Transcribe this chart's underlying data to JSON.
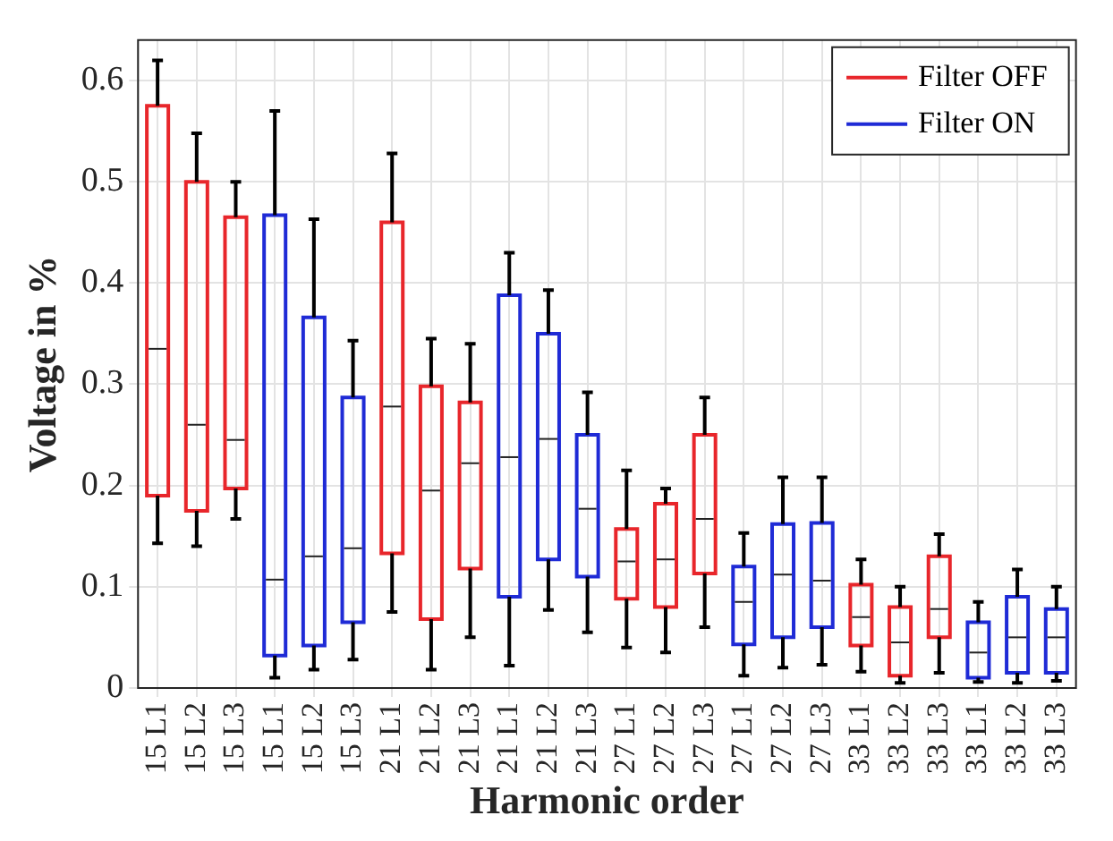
{
  "chart_data": {
    "type": "box",
    "xlabel": "Harmonic order",
    "ylabel": "Voltage in %",
    "categories": [
      "15 L1",
      "15 L2",
      "15 L3",
      "15 L1",
      "15 L2",
      "15 L3",
      "21 L1",
      "21 L2",
      "21 L3",
      "21 L1",
      "21 L2",
      "21 L3",
      "27 L1",
      "27 L2",
      "27 L3",
      "27 L1",
      "27 L2",
      "27 L3",
      "33 L1",
      "33 L2",
      "33 L3",
      "33 L1",
      "33 L2",
      "33 L3"
    ],
    "ylim": [
      0,
      0.64
    ],
    "yticks": [
      0,
      0.1,
      0.2,
      0.3,
      0.4,
      0.5,
      0.6
    ],
    "grid": true,
    "legend": "top right",
    "series": [
      {
        "name": "Filter OFF",
        "color": "#e8262b",
        "boxes": [
          {
            "low": 0.143,
            "q1": 0.19,
            "median": 0.335,
            "q3": 0.575,
            "high": 0.62
          },
          {
            "low": 0.14,
            "q1": 0.175,
            "median": 0.26,
            "q3": 0.5,
            "high": 0.548
          },
          {
            "low": 0.167,
            "q1": 0.197,
            "median": 0.245,
            "q3": 0.465,
            "high": 0.5
          },
          null,
          null,
          null,
          {
            "low": 0.075,
            "q1": 0.133,
            "median": 0.278,
            "q3": 0.46,
            "high": 0.528
          },
          {
            "low": 0.018,
            "q1": 0.068,
            "median": 0.195,
            "q3": 0.298,
            "high": 0.345
          },
          {
            "low": 0.05,
            "q1": 0.118,
            "median": 0.222,
            "q3": 0.282,
            "high": 0.34
          },
          null,
          null,
          null,
          {
            "low": 0.04,
            "q1": 0.088,
            "median": 0.125,
            "q3": 0.157,
            "high": 0.215
          },
          {
            "low": 0.035,
            "q1": 0.08,
            "median": 0.127,
            "q3": 0.182,
            "high": 0.197
          },
          {
            "low": 0.06,
            "q1": 0.113,
            "median": 0.167,
            "q3": 0.25,
            "high": 0.287
          },
          null,
          null,
          null,
          {
            "low": 0.016,
            "q1": 0.042,
            "median": 0.07,
            "q3": 0.102,
            "high": 0.127
          },
          {
            "low": 0.005,
            "q1": 0.012,
            "median": 0.045,
            "q3": 0.08,
            "high": 0.1
          },
          {
            "low": 0.015,
            "q1": 0.05,
            "median": 0.078,
            "q3": 0.13,
            "high": 0.152
          },
          null,
          null,
          null
        ]
      },
      {
        "name": "Filter ON",
        "color": "#1f2bd6",
        "boxes": [
          null,
          null,
          null,
          {
            "low": 0.01,
            "q1": 0.032,
            "median": 0.107,
            "q3": 0.467,
            "high": 0.57
          },
          {
            "low": 0.018,
            "q1": 0.042,
            "median": 0.13,
            "q3": 0.366,
            "high": 0.463
          },
          {
            "low": 0.028,
            "q1": 0.065,
            "median": 0.138,
            "q3": 0.287,
            "high": 0.343
          },
          null,
          null,
          null,
          {
            "low": 0.022,
            "q1": 0.09,
            "median": 0.228,
            "q3": 0.388,
            "high": 0.43
          },
          {
            "low": 0.077,
            "q1": 0.127,
            "median": 0.246,
            "q3": 0.35,
            "high": 0.393
          },
          {
            "low": 0.055,
            "q1": 0.11,
            "median": 0.177,
            "q3": 0.25,
            "high": 0.292
          },
          null,
          null,
          null,
          {
            "low": 0.012,
            "q1": 0.043,
            "median": 0.085,
            "q3": 0.12,
            "high": 0.153
          },
          {
            "low": 0.02,
            "q1": 0.05,
            "median": 0.112,
            "q3": 0.162,
            "high": 0.208
          },
          {
            "low": 0.023,
            "q1": 0.06,
            "median": 0.106,
            "q3": 0.163,
            "high": 0.208
          },
          null,
          null,
          null,
          {
            "low": 0.006,
            "q1": 0.01,
            "median": 0.035,
            "q3": 0.065,
            "high": 0.085
          },
          {
            "low": 0.005,
            "q1": 0.015,
            "median": 0.05,
            "q3": 0.09,
            "high": 0.117
          },
          {
            "low": 0.007,
            "q1": 0.015,
            "median": 0.05,
            "q3": 0.078,
            "high": 0.1
          }
        ]
      }
    ]
  }
}
